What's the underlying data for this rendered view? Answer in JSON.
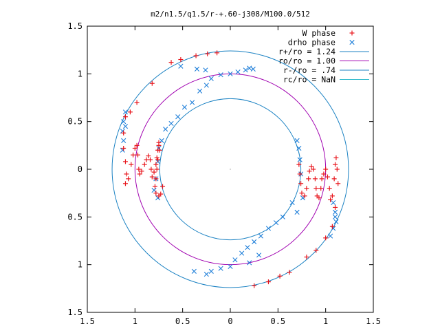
{
  "chart_data": {
    "type": "scatter",
    "title": "m2/n1.5/q1.5/r-+.60-j308/M100.0/512",
    "xlabel": "",
    "ylabel": "",
    "xlim": [
      -1.5,
      1.5
    ],
    "ylim": [
      -1.5,
      1.5
    ],
    "x_ticks": [
      "1.5",
      "1",
      "0.5",
      "0",
      "0.5",
      "1",
      "1.5"
    ],
    "x_tick_values": [
      -1.5,
      -1,
      -0.5,
      0,
      0.5,
      1,
      1.5
    ],
    "y_ticks": [
      "1.5",
      "1",
      "0.5",
      "0",
      "0.5",
      "1",
      "1.5"
    ],
    "y_tick_values": [
      1.5,
      1,
      0.5,
      0,
      -0.5,
      -1,
      -1.5
    ],
    "grid": false,
    "legend_position": "top-right",
    "series": [
      {
        "name": "W phase",
        "marker": "plus",
        "color": "#e8141b",
        "kind": "points"
      },
      {
        "name": "drho phase",
        "marker": "cross",
        "color": "#1f7fd9",
        "kind": "points"
      },
      {
        "name": "r+/ro = 1.24",
        "color": "#1b82c3",
        "kind": "circle",
        "radius": 1.24
      },
      {
        "name": "ro/ro = 1.00",
        "color": "#a000b0",
        "kind": "circle",
        "radius": 1.0
      },
      {
        "name": "r-/ro = .74",
        "color": "#1b82c3",
        "kind": "circle",
        "radius": 0.74
      },
      {
        "name": "rc/ro = NaN",
        "color": "#33bbcc",
        "kind": "circle",
        "radius": null
      }
    ],
    "w_points": [
      [
        -0.62,
        1.12
      ],
      [
        -0.52,
        1.15
      ],
      [
        -0.36,
        1.19
      ],
      [
        -0.24,
        1.21
      ],
      [
        -0.14,
        1.22
      ],
      [
        -0.82,
        0.9
      ],
      [
        -0.98,
        0.7
      ],
      [
        -1.05,
        0.6
      ],
      [
        -1.1,
        0.55
      ],
      [
        -1.12,
        0.38
      ],
      [
        -1.12,
        0.22
      ],
      [
        -1.1,
        0.08
      ],
      [
        -1.09,
        -0.05
      ],
      [
        -1.1,
        -0.15
      ],
      [
        -1.07,
        -0.1
      ],
      [
        -1.04,
        0.05
      ],
      [
        -1.02,
        0.15
      ],
      [
        -1.0,
        0.22
      ],
      [
        -0.98,
        0.25
      ],
      [
        -0.97,
        0.15
      ],
      [
        -0.96,
        0.0
      ],
      [
        -0.95,
        -0.05
      ],
      [
        -0.93,
        -0.02
      ],
      [
        -0.9,
        0.05
      ],
      [
        -0.88,
        0.1
      ],
      [
        -0.86,
        0.14
      ],
      [
        -0.84,
        0.1
      ],
      [
        -0.83,
        0.0
      ],
      [
        -0.82,
        -0.08
      ],
      [
        -0.8,
        -0.03
      ],
      [
        -0.78,
        0.05
      ],
      [
        -0.77,
        0.12
      ],
      [
        -0.76,
        0.2
      ],
      [
        -0.75,
        0.25
      ],
      [
        -0.74,
        0.2
      ],
      [
        -0.76,
        0.1
      ],
      [
        -0.77,
        0.0
      ],
      [
        -0.78,
        -0.1
      ],
      [
        -0.79,
        -0.18
      ],
      [
        -0.78,
        -0.25
      ],
      [
        -0.75,
        -0.28
      ],
      [
        -0.73,
        -0.26
      ],
      [
        -0.71,
        -0.18
      ],
      [
        -0.75,
        0.28
      ],
      [
        0.72,
        0.05
      ],
      [
        0.73,
        -0.05
      ],
      [
        0.74,
        -0.15
      ],
      [
        0.75,
        -0.25
      ],
      [
        0.78,
        -0.28
      ],
      [
        0.8,
        -0.2
      ],
      [
        0.82,
        -0.1
      ],
      [
        0.83,
        -0.02
      ],
      [
        0.85,
        0.03
      ],
      [
        0.87,
        0.0
      ],
      [
        0.89,
        -0.1
      ],
      [
        0.9,
        -0.2
      ],
      [
        0.91,
        -0.28
      ],
      [
        0.93,
        -0.3
      ],
      [
        0.95,
        -0.2
      ],
      [
        0.96,
        -0.1
      ],
      [
        0.98,
        -0.05
      ],
      [
        1.0,
        0.0
      ],
      [
        1.02,
        -0.08
      ],
      [
        1.04,
        -0.2
      ],
      [
        1.05,
        -0.32
      ],
      [
        1.07,
        -0.28
      ],
      [
        1.09,
        -0.1
      ],
      [
        1.1,
        0.05
      ],
      [
        1.11,
        0.12
      ],
      [
        1.12,
        0.0
      ],
      [
        1.13,
        -0.15
      ],
      [
        0.25,
        -1.22
      ],
      [
        0.4,
        -1.18
      ],
      [
        0.52,
        -1.12
      ],
      [
        0.62,
        -1.08
      ],
      [
        0.8,
        -0.92
      ],
      [
        0.9,
        -0.85
      ],
      [
        1.0,
        -0.72
      ],
      [
        1.07,
        -0.6
      ],
      [
        1.1,
        -0.4
      ]
    ],
    "drho_points": [
      [
        -0.52,
        1.08
      ],
      [
        -0.35,
        1.05
      ],
      [
        -0.26,
        1.04
      ],
      [
        -0.1,
        0.99
      ],
      [
        0.0,
        1.0
      ],
      [
        0.08,
        1.02
      ],
      [
        0.16,
        1.04
      ],
      [
        0.2,
        1.06
      ],
      [
        0.24,
        1.05
      ],
      [
        -0.2,
        0.95
      ],
      [
        -0.25,
        0.88
      ],
      [
        -0.32,
        0.82
      ],
      [
        -0.4,
        0.7
      ],
      [
        -0.48,
        0.65
      ],
      [
        -0.55,
        0.55
      ],
      [
        -0.62,
        0.48
      ],
      [
        -0.68,
        0.42
      ],
      [
        -0.72,
        0.3
      ],
      [
        -0.75,
        0.22
      ],
      [
        -0.76,
        0.08
      ],
      [
        -0.78,
        -0.1
      ],
      [
        -0.8,
        -0.22
      ],
      [
        -0.76,
        -0.3
      ],
      [
        -1.1,
        0.6
      ],
      [
        -1.12,
        0.5
      ],
      [
        -1.13,
        0.4
      ],
      [
        -1.12,
        0.3
      ],
      [
        -1.13,
        0.2
      ],
      [
        -1.1,
        0.45
      ],
      [
        0.7,
        0.3
      ],
      [
        0.72,
        0.22
      ],
      [
        0.73,
        0.1
      ],
      [
        0.74,
        -0.05
      ],
      [
        0.76,
        -0.3
      ],
      [
        0.7,
        -0.45
      ],
      [
        1.08,
        -0.35
      ],
      [
        1.1,
        -0.45
      ],
      [
        1.11,
        -0.55
      ],
      [
        1.08,
        -0.62
      ],
      [
        1.05,
        -0.7
      ],
      [
        1.1,
        -0.5
      ],
      [
        0.65,
        -0.35
      ],
      [
        0.55,
        -0.5
      ],
      [
        0.48,
        -0.56
      ],
      [
        0.4,
        -0.62
      ],
      [
        0.32,
        -0.7
      ],
      [
        0.25,
        -0.76
      ],
      [
        0.18,
        -0.82
      ],
      [
        0.12,
        -0.88
      ],
      [
        0.05,
        -0.95
      ],
      [
        0.0,
        -1.02
      ],
      [
        -0.1,
        -1.04
      ],
      [
        -0.2,
        -1.07
      ],
      [
        -0.25,
        -1.1
      ],
      [
        -0.38,
        -1.07
      ],
      [
        0.3,
        -0.9
      ],
      [
        0.2,
        -0.98
      ]
    ]
  }
}
